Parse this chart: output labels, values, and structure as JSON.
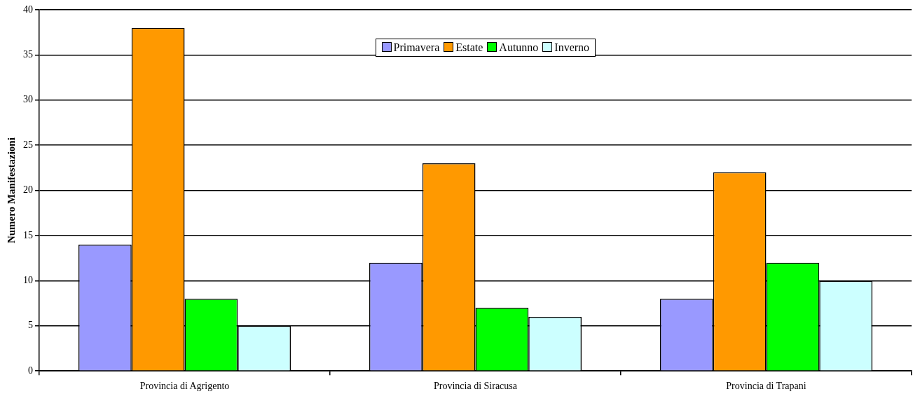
{
  "chart_data": {
    "type": "bar",
    "ylabel": "Numero Manifestazioni",
    "categories": [
      "Provincia di Agrigento",
      "Provincia di Siracusa",
      "Provincia di Trapani"
    ],
    "series": [
      {
        "name": "Primavera",
        "color": "#9999ff",
        "values": [
          14,
          12,
          8
        ]
      },
      {
        "name": "Estate",
        "color": "#ff9900",
        "values": [
          38,
          23,
          22
        ]
      },
      {
        "name": "Autunno",
        "color": "#00ff00",
        "values": [
          8,
          7,
          12
        ]
      },
      {
        "name": "Inverno",
        "color": "#ccffff",
        "values": [
          5,
          6,
          10
        ]
      }
    ],
    "ylim": [
      0,
      40
    ],
    "yticks": [
      0,
      5,
      10,
      15,
      20,
      25,
      30,
      35,
      40
    ],
    "grid": "y",
    "legend": "top"
  }
}
